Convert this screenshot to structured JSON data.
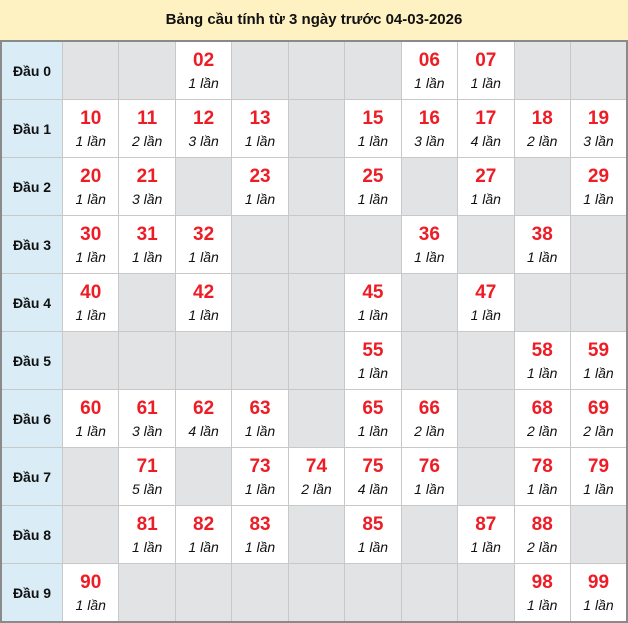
{
  "title": "Bảng cầu tính từ 3 ngày trước 04-03-2026",
  "colors": {
    "number": "#ee1c25",
    "header_bg": "#fff2c2",
    "label_bg": "#daedf7",
    "empty_bg": "#e2e3e5"
  },
  "rows": [
    {
      "label": "Đầu 0",
      "cells": [
        null,
        null,
        {
          "num": "02",
          "count": "1 lần"
        },
        null,
        null,
        null,
        {
          "num": "06",
          "count": "1 lần"
        },
        {
          "num": "07",
          "count": "1 lần"
        },
        null,
        null
      ]
    },
    {
      "label": "Đầu 1",
      "cells": [
        {
          "num": "10",
          "count": "1 lần"
        },
        {
          "num": "11",
          "count": "2 lần"
        },
        {
          "num": "12",
          "count": "3 lần"
        },
        {
          "num": "13",
          "count": "1 lần"
        },
        null,
        {
          "num": "15",
          "count": "1 lần"
        },
        {
          "num": "16",
          "count": "3 lần"
        },
        {
          "num": "17",
          "count": "4 lần"
        },
        {
          "num": "18",
          "count": "2 lần"
        },
        {
          "num": "19",
          "count": "3 lần"
        }
      ]
    },
    {
      "label": "Đầu 2",
      "cells": [
        {
          "num": "20",
          "count": "1 lần"
        },
        {
          "num": "21",
          "count": "3 lần"
        },
        null,
        {
          "num": "23",
          "count": "1 lần"
        },
        null,
        {
          "num": "25",
          "count": "1 lần"
        },
        null,
        {
          "num": "27",
          "count": "1 lần"
        },
        null,
        {
          "num": "29",
          "count": "1 lần"
        }
      ]
    },
    {
      "label": "Đầu 3",
      "cells": [
        {
          "num": "30",
          "count": "1 lần"
        },
        {
          "num": "31",
          "count": "1 lần"
        },
        {
          "num": "32",
          "count": "1 lần"
        },
        null,
        null,
        null,
        {
          "num": "36",
          "count": "1 lần"
        },
        null,
        {
          "num": "38",
          "count": "1 lần"
        },
        null
      ]
    },
    {
      "label": "Đầu 4",
      "cells": [
        {
          "num": "40",
          "count": "1 lần"
        },
        null,
        {
          "num": "42",
          "count": "1 lần"
        },
        null,
        null,
        {
          "num": "45",
          "count": "1 lần"
        },
        null,
        {
          "num": "47",
          "count": "1 lần"
        },
        null,
        null
      ]
    },
    {
      "label": "Đầu 5",
      "cells": [
        null,
        null,
        null,
        null,
        null,
        {
          "num": "55",
          "count": "1 lần"
        },
        null,
        null,
        {
          "num": "58",
          "count": "1 lần"
        },
        {
          "num": "59",
          "count": "1 lần"
        }
      ]
    },
    {
      "label": "Đầu 6",
      "cells": [
        {
          "num": "60",
          "count": "1 lần"
        },
        {
          "num": "61",
          "count": "3 lần"
        },
        {
          "num": "62",
          "count": "4 lần"
        },
        {
          "num": "63",
          "count": "1 lần"
        },
        null,
        {
          "num": "65",
          "count": "1 lần"
        },
        {
          "num": "66",
          "count": "2 lần"
        },
        null,
        {
          "num": "68",
          "count": "2 lần"
        },
        {
          "num": "69",
          "count": "2 lần"
        }
      ]
    },
    {
      "label": "Đầu 7",
      "cells": [
        null,
        {
          "num": "71",
          "count": "5 lần"
        },
        null,
        {
          "num": "73",
          "count": "1 lần"
        },
        {
          "num": "74",
          "count": "2 lần"
        },
        {
          "num": "75",
          "count": "4 lần"
        },
        {
          "num": "76",
          "count": "1 lần"
        },
        null,
        {
          "num": "78",
          "count": "1 lần"
        },
        {
          "num": "79",
          "count": "1 lần"
        }
      ]
    },
    {
      "label": "Đầu 8",
      "cells": [
        null,
        {
          "num": "81",
          "count": "1 lần"
        },
        {
          "num": "82",
          "count": "1 lần"
        },
        {
          "num": "83",
          "count": "1 lần"
        },
        null,
        {
          "num": "85",
          "count": "1 lần"
        },
        null,
        {
          "num": "87",
          "count": "1 lần"
        },
        {
          "num": "88",
          "count": "2 lần"
        },
        null
      ]
    },
    {
      "label": "Đầu 9",
      "cells": [
        {
          "num": "90",
          "count": "1 lần"
        },
        null,
        null,
        null,
        null,
        null,
        null,
        null,
        {
          "num": "98",
          "count": "1 lần"
        },
        {
          "num": "99",
          "count": "1 lần"
        }
      ]
    }
  ]
}
